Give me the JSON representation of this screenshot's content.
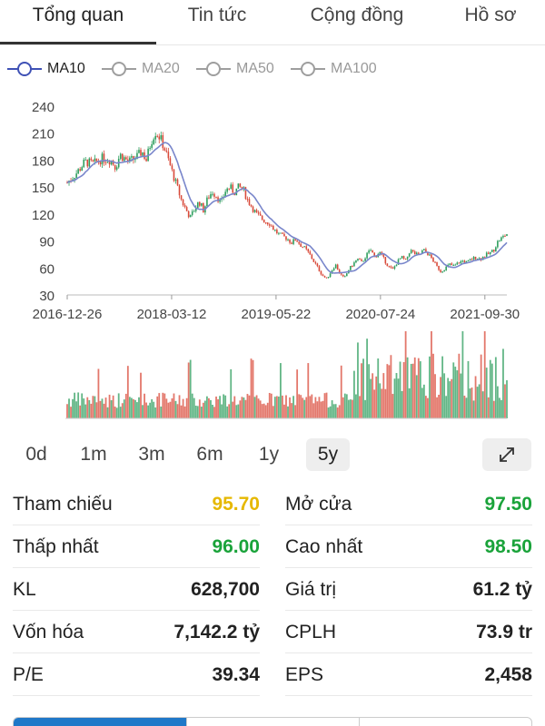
{
  "tabs": [
    {
      "label": "Tổng quan",
      "active": true
    },
    {
      "label": "Tin tức",
      "active": false
    },
    {
      "label": "Cộng đồng",
      "active": false
    },
    {
      "label": "Hồ sơ",
      "active": false
    }
  ],
  "legend": [
    {
      "label": "MA10",
      "active": true,
      "color": "#3f51b5"
    },
    {
      "label": "MA20",
      "active": false,
      "color": "#9e9e9e"
    },
    {
      "label": "MA50",
      "active": false,
      "color": "#9e9e9e"
    },
    {
      "label": "MA100",
      "active": false,
      "color": "#9e9e9e"
    }
  ],
  "chart_data": {
    "type": "line",
    "y_ticks": [
      "240",
      "210",
      "180",
      "150",
      "120",
      "90",
      "60",
      "30"
    ],
    "ylim": [
      30,
      240
    ],
    "x_ticks": [
      "2016-12-26",
      "2018-03-12",
      "2019-05-22",
      "2020-07-24",
      "2021-09-30"
    ],
    "price_series": [
      [
        0.0,
        155
      ],
      [
        0.02,
        165
      ],
      [
        0.04,
        178
      ],
      [
        0.06,
        176
      ],
      [
        0.08,
        182
      ],
      [
        0.1,
        180
      ],
      [
        0.11,
        172
      ],
      [
        0.12,
        186
      ],
      [
        0.14,
        178
      ],
      [
        0.16,
        184
      ],
      [
        0.17,
        190
      ],
      [
        0.18,
        180
      ],
      [
        0.19,
        200
      ],
      [
        0.2,
        212
      ],
      [
        0.21,
        206
      ],
      [
        0.22,
        195
      ],
      [
        0.23,
        180
      ],
      [
        0.24,
        165
      ],
      [
        0.25,
        150
      ],
      [
        0.26,
        135
      ],
      [
        0.27,
        125
      ],
      [
        0.28,
        116
      ],
      [
        0.29,
        126
      ],
      [
        0.3,
        134
      ],
      [
        0.31,
        124
      ],
      [
        0.32,
        138
      ],
      [
        0.33,
        145
      ],
      [
        0.34,
        140
      ],
      [
        0.35,
        132
      ],
      [
        0.36,
        146
      ],
      [
        0.37,
        150
      ],
      [
        0.38,
        144
      ],
      [
        0.39,
        150
      ],
      [
        0.4,
        148
      ],
      [
        0.41,
        136
      ],
      [
        0.42,
        128
      ],
      [
        0.43,
        120
      ],
      [
        0.44,
        116
      ],
      [
        0.45,
        112
      ],
      [
        0.46,
        110
      ],
      [
        0.47,
        103
      ],
      [
        0.48,
        98
      ],
      [
        0.49,
        95
      ],
      [
        0.5,
        93
      ],
      [
        0.51,
        88
      ],
      [
        0.52,
        92
      ],
      [
        0.53,
        86
      ],
      [
        0.54,
        82
      ],
      [
        0.55,
        76
      ],
      [
        0.56,
        68
      ],
      [
        0.57,
        60
      ],
      [
        0.58,
        52
      ],
      [
        0.59,
        48
      ],
      [
        0.6,
        56
      ],
      [
        0.61,
        64
      ],
      [
        0.62,
        54
      ],
      [
        0.63,
        48
      ],
      [
        0.64,
        58
      ],
      [
        0.65,
        64
      ],
      [
        0.66,
        70
      ],
      [
        0.67,
        66
      ],
      [
        0.68,
        74
      ],
      [
        0.69,
        80
      ],
      [
        0.7,
        72
      ],
      [
        0.71,
        78
      ],
      [
        0.72,
        70
      ],
      [
        0.73,
        62
      ],
      [
        0.74,
        58
      ],
      [
        0.75,
        66
      ],
      [
        0.76,
        72
      ],
      [
        0.77,
        68
      ],
      [
        0.78,
        80
      ],
      [
        0.79,
        76
      ],
      [
        0.8,
        74
      ],
      [
        0.81,
        80
      ],
      [
        0.82,
        76
      ],
      [
        0.83,
        70
      ],
      [
        0.84,
        62
      ],
      [
        0.85,
        56
      ],
      [
        0.86,
        60
      ],
      [
        0.87,
        64
      ],
      [
        0.88,
        62
      ],
      [
        0.89,
        66
      ],
      [
        0.9,
        68
      ],
      [
        0.91,
        66
      ],
      [
        0.92,
        70
      ],
      [
        0.93,
        72
      ],
      [
        0.94,
        70
      ],
      [
        0.95,
        74
      ],
      [
        0.96,
        76
      ],
      [
        0.97,
        80
      ],
      [
        0.98,
        90
      ],
      [
        1.0,
        98
      ]
    ]
  },
  "ranges": [
    {
      "label": "0d",
      "active": false
    },
    {
      "label": "1m",
      "active": false
    },
    {
      "label": "3m",
      "active": false
    },
    {
      "label": "6m",
      "active": false
    },
    {
      "label": "1y",
      "active": false
    },
    {
      "label": "5y",
      "active": true
    }
  ],
  "stats": [
    {
      "left": {
        "label": "Tham chiếu",
        "value": "95.70",
        "color": "#e6b800"
      },
      "right": {
        "label": "Mở cửa",
        "value": "97.50",
        "color": "#1aa33a"
      }
    },
    {
      "left": {
        "label": "Thấp nhất",
        "value": "96.00",
        "color": "#1aa33a"
      },
      "right": {
        "label": "Cao nhất",
        "value": "98.50",
        "color": "#1aa33a"
      }
    },
    {
      "left": {
        "label": "KL",
        "value": "628,700",
        "color": "#222222"
      },
      "right": {
        "label": "Giá trị",
        "value": "61.2 tỷ",
        "color": "#222222"
      }
    },
    {
      "left": {
        "label": "Vốn hóa",
        "value": "7,142.2 tỷ",
        "color": "#222222"
      },
      "right": {
        "label": "CPLH",
        "value": "73.9 tr",
        "color": "#222222"
      }
    },
    {
      "left": {
        "label": "P/E",
        "value": "39.34",
        "color": "#222222"
      },
      "right": {
        "label": "EPS",
        "value": "2,458",
        "color": "#222222"
      }
    }
  ],
  "colors": {
    "up": "#2e9e5e",
    "down": "#d94a3a",
    "ma_line": "#7986cb",
    "accent": "#1f78c8"
  }
}
